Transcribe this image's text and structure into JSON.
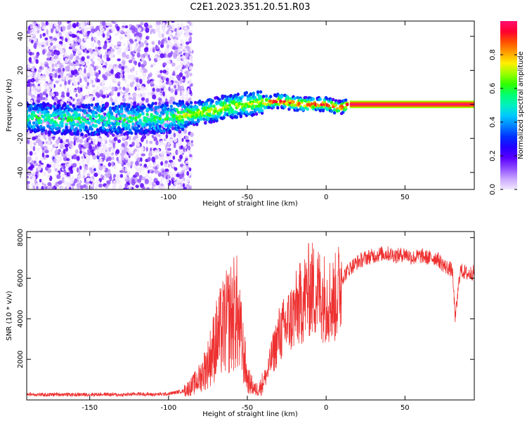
{
  "figure": {
    "title": "C2E1.2023.351.20.51.R03"
  },
  "colors": {
    "snr_line": "#ee3030",
    "axis": "#000000",
    "background": "#ffffff",
    "colormap": [
      "#f2e8ff",
      "#c9a6ff",
      "#8f4dff",
      "#5a00ff",
      "#2500ff",
      "#0030ff",
      "#0080ff",
      "#00c8ff",
      "#00f0c0",
      "#00ff70",
      "#30ff00",
      "#9cff00",
      "#ffee00",
      "#ffa000",
      "#ff5000",
      "#ff0030",
      "#ff1070"
    ]
  },
  "chart_data": [
    {
      "type": "heatmap",
      "xlabel": "Height of straight line (km)",
      "ylabel": "Frequency (Hz)",
      "xlim": [
        -190,
        94
      ],
      "ylim": [
        -50,
        49
      ],
      "x_ticks": [
        -150,
        -100,
        -50,
        0,
        50
      ],
      "y_ticks": [
        -40,
        -20,
        0,
        20,
        40
      ],
      "colorbar": {
        "label": "Normalized spectral amplitude",
        "range": [
          0,
          1
        ],
        "ticks": [
          0.0,
          0.2,
          0.4,
          0.6,
          0.8
        ]
      },
      "ridge": {
        "description_points": [
          {
            "x": -190,
            "freq": -8
          },
          {
            "x": -150,
            "freq": -9
          },
          {
            "x": -100,
            "freq": -8
          },
          {
            "x": -80,
            "freq": -5
          },
          {
            "x": -60,
            "freq": -1
          },
          {
            "x": -40,
            "freq": 1
          },
          {
            "x": -30,
            "freq": 2
          },
          {
            "x": -15,
            "freq": 0
          },
          {
            "x": 0,
            "freq": 0
          },
          {
            "x": 8,
            "freq": -2
          },
          {
            "x": 15,
            "freq": 0
          },
          {
            "x": 94,
            "freq": 0
          }
        ],
        "peak_amplitude_from_x": 15
      },
      "scatter_region": {
        "x_range": [
          -190,
          -95
        ],
        "freq_range": [
          -50,
          49
        ]
      }
    },
    {
      "type": "line",
      "xlabel": "Height of straight line (km)",
      "ylabel": "SNR (10 * v/v)",
      "xlim": [
        -190,
        94
      ],
      "ylim": [
        0,
        8300
      ],
      "x_ticks": [
        -150,
        -100,
        -50,
        0,
        50
      ],
      "y_ticks": [
        2000,
        4000,
        6000,
        8000
      ],
      "series": [
        {
          "x": [
            -190,
            -180,
            -170,
            -160,
            -150,
            -140,
            -130,
            -120,
            -110,
            -100,
            -90,
            -85,
            -80,
            -75,
            -70,
            -65,
            -60,
            -57,
            -55,
            -52,
            -50,
            -47,
            -45,
            -42,
            -40,
            -37,
            -35,
            -32,
            -30,
            -25,
            -20,
            -15,
            -10,
            -5,
            0,
            5,
            8,
            10,
            15,
            20,
            25,
            30,
            35,
            40,
            45,
            50,
            55,
            60,
            65,
            70,
            75,
            80,
            82,
            85,
            90,
            94
          ],
          "y": [
            300,
            250,
            280,
            260,
            270,
            280,
            250,
            300,
            270,
            300,
            450,
            700,
            1100,
            1800,
            2900,
            3600,
            4100,
            4400,
            3400,
            2100,
            1000,
            700,
            500,
            600,
            900,
            1400,
            2000,
            2700,
            3200,
            3700,
            4300,
            4900,
            5500,
            5300,
            5000,
            4900,
            5400,
            6000,
            6500,
            6800,
            7000,
            7100,
            7200,
            7200,
            7100,
            7200,
            7000,
            7100,
            7000,
            7000,
            6600,
            6400,
            4000,
            6400,
            6200,
            6300
          ]
        }
      ]
    }
  ]
}
